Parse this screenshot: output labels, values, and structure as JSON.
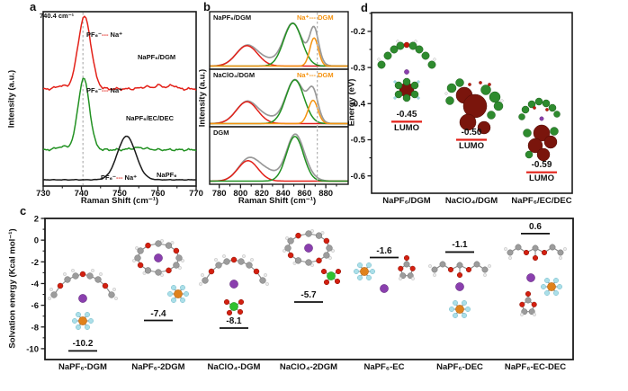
{
  "colors": {
    "red": "#e32119",
    "green": "#229122",
    "orange": "#f59311",
    "envelope_gray": "#999999",
    "dashed_gray": "#b0b0b0",
    "na_purple": "#8a3fae",
    "p_orange": "#e0821c",
    "f_cyan": "#abdfe9",
    "cl_green": "#2fc12f",
    "o_red": "#d32010",
    "c_gray": "#9c9c9c",
    "orbital_green": "#2e8b2e",
    "orbital_maroon": "#7a150c"
  },
  "chart_data": [
    {
      "id": "a",
      "type": "line",
      "tag": "a",
      "xlabel": "Raman Shift (cm⁻¹)",
      "ylabel": "Intensity (a.u.)",
      "xlim": [
        730,
        770
      ],
      "xticks": [
        730,
        740,
        750,
        760,
        770
      ],
      "annotation": "740.4 cm⁻¹",
      "dashed_x": 740.4,
      "series": [
        {
          "name": "NaPF₆/DGM",
          "color": "#e32119",
          "baseline": 0.557,
          "noise": 0.009,
          "peak_label": [
            "PF₆⁻",
            "---",
            " Na⁺"
          ],
          "peaks": [
            {
              "c": 740.8,
              "w": 1.7,
              "a": 0.415
            },
            {
              "c": 734.6,
              "w": 1.2,
              "a": 0.018
            },
            {
              "c": 757.0,
              "w": 1.5,
              "a": 0.012
            },
            {
              "c": 760.5,
              "w": 1.0,
              "a": 0.02
            },
            {
              "c": 763.8,
              "w": 0.9,
              "a": 0.022
            }
          ]
        },
        {
          "name": "NaPF₆/EC/DEC",
          "color": "#229122",
          "baseline": 0.208,
          "noise": 0.008,
          "peak_label": [
            "PF₆⁻",
            "---",
            " Na⁺"
          ],
          "peaks": [
            {
              "c": 740.6,
              "w": 1.5,
              "a": 0.41
            },
            {
              "c": 735.0,
              "w": 1.5,
              "a": 0.018
            },
            {
              "c": 755.0,
              "w": 2.0,
              "a": 0.012
            }
          ]
        },
        {
          "name": "NaPF₆",
          "color": "#1a1a1a",
          "baseline": 0.036,
          "noise": 0.002,
          "peak_label": [
            "PF₆⁻",
            "---",
            " Na⁺"
          ],
          "peaks": [
            {
              "c": 751.8,
              "w": 2.4,
              "a": 0.25
            }
          ]
        }
      ]
    },
    {
      "id": "b",
      "type": "line",
      "tag": "b",
      "xlabel": "Raman Shift (cm⁻¹)",
      "ylabel": "Intensity (a.u.)",
      "xlim": [
        771,
        901
      ],
      "xticks": [
        780,
        800,
        820,
        840,
        860,
        880
      ],
      "dashed_x": 872,
      "envelope_color": "#999999",
      "panels": [
        {
          "label": "NaPF₆/DGM",
          "legend": "Na⁺--- DGM",
          "components": [
            {
              "color": "#e32119",
              "c": 806,
              "w": 10,
              "a": 0.42
            },
            {
              "color": "#229122",
              "c": 849,
              "w": 8.5,
              "a": 0.88
            },
            {
              "color": "#f59311",
              "c": 869,
              "w": 4,
              "a": 0.58
            }
          ],
          "envelope_extra": [
            {
              "c": 826,
              "w": 10,
              "a": 0.1
            },
            {
              "c": 869,
              "w": 6,
              "a": 0.18
            }
          ]
        },
        {
          "label": "NaClO₄/DGM",
          "legend": "Na⁺--- DGM",
          "components": [
            {
              "color": "#e32119",
              "c": 806,
              "w": 10,
              "a": 0.45
            },
            {
              "color": "#229122",
              "c": 851,
              "w": 8.5,
              "a": 0.9
            },
            {
              "color": "#f59311",
              "c": 868,
              "w": 4.5,
              "a": 0.48
            }
          ],
          "envelope_extra": [
            {
              "c": 826,
              "w": 10,
              "a": 0.1
            },
            {
              "c": 868,
              "w": 6,
              "a": 0.15
            }
          ]
        },
        {
          "label": "DGM",
          "legend": "",
          "components": [
            {
              "color": "#e32119",
              "c": 807,
              "w": 9.5,
              "a": 0.42
            },
            {
              "color": "#229122",
              "c": 851,
              "w": 8,
              "a": 0.92
            }
          ],
          "envelope_extra": [
            {
              "c": 824,
              "w": 11,
              "a": 0.2
            },
            {
              "c": 862,
              "w": 8,
              "a": 0.1
            }
          ]
        }
      ]
    },
    {
      "id": "d",
      "type": "level",
      "tag": "d",
      "ylabel": "Energy (eV)",
      "ylim": [
        -0.148,
        -0.648
      ],
      "yticks": [
        -0.2,
        -0.3,
        -0.4,
        -0.5,
        -0.6
      ],
      "level_label": "LUMO",
      "level_color": "#e32119",
      "entries": [
        {
          "label": "NaPF₆/DGM",
          "value": -0.45,
          "value_text": "-0.45"
        },
        {
          "label": "NaClO₄/DGM",
          "value": -0.5,
          "value_text": "-0.50"
        },
        {
          "label": "NaPF₆/EC/DEC",
          "value": -0.59,
          "value_text": "-0.59"
        }
      ]
    },
    {
      "id": "c",
      "type": "level",
      "tag": "c",
      "ylabel": "Solvation energy (Kcal mol⁻¹)",
      "ylim": [
        2,
        -11
      ],
      "yticks": [
        2,
        0,
        -2,
        -4,
        -6,
        -8,
        -10
      ],
      "entries": [
        {
          "label": "NaPF₆-DGM",
          "value": -10.2,
          "value_text": "-10.2"
        },
        {
          "label": "NaPF₆-2DGM",
          "value": -7.4,
          "value_text": "-7.4"
        },
        {
          "label": "NaClO₄-DGM",
          "value": -8.1,
          "value_text": "-8.1"
        },
        {
          "label": "NaClO₄-2DGM",
          "value": -5.7,
          "value_text": "-5.7"
        },
        {
          "label": "NaPF₆-EC",
          "value": -1.6,
          "value_text": "-1.6"
        },
        {
          "label": "NaPF₆-DEC",
          "value": -1.1,
          "value_text": "-1.1"
        },
        {
          "label": "NaPF₆-EC-DEC",
          "value": 0.6,
          "value_text": "0.6"
        }
      ]
    }
  ]
}
